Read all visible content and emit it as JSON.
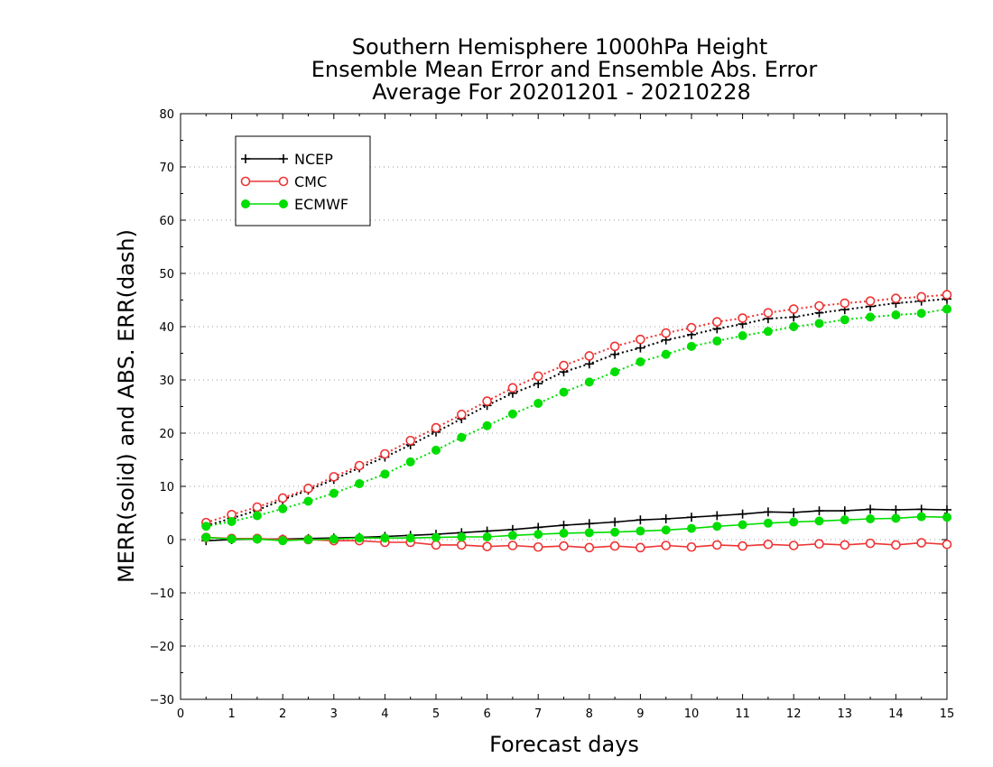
{
  "chart_data": {
    "type": "line",
    "title": [
      "Southern Hemisphere 1000hPa Height",
      "Ensemble Mean Error and Ensemble Abs. Error",
      "Average For 20201201 - 20210228"
    ],
    "xlabel": "Forecast days",
    "ylabel": "MERR(solid) and ABS. ERR(dash)",
    "xlim": [
      0,
      15
    ],
    "ylim": [
      -30,
      80
    ],
    "xticks": [
      0,
      1,
      2,
      3,
      4,
      5,
      6,
      7,
      8,
      9,
      10,
      11,
      12,
      13,
      14,
      15
    ],
    "yticks": [
      -30,
      -20,
      -10,
      0,
      10,
      20,
      30,
      40,
      50,
      60,
      70,
      80
    ],
    "ytick_labels": [
      "−30",
      "−20",
      "−10",
      "0",
      "10",
      "20",
      "30",
      "40",
      "50",
      "60",
      "70",
      "80"
    ],
    "grid": "horizontal dotted",
    "legend_position": "top-left",
    "x": [
      0.5,
      1,
      1.5,
      2,
      2.5,
      3,
      3.5,
      4,
      4.5,
      5,
      5.5,
      6,
      6.5,
      7,
      7.5,
      8,
      8.5,
      9,
      9.5,
      10,
      10.5,
      11,
      11.5,
      12,
      12.5,
      13,
      13.5,
      14,
      14.5,
      15
    ],
    "series": [
      {
        "name": "NCEP",
        "color": "#000000",
        "marker": "plus",
        "merr": [
          -0.2,
          0.0,
          0.1,
          0.1,
          0.2,
          0.3,
          0.4,
          0.6,
          0.8,
          1.0,
          1.3,
          1.6,
          1.9,
          2.3,
          2.7,
          3.0,
          3.3,
          3.7,
          3.9,
          4.2,
          4.5,
          4.8,
          5.2,
          5.1,
          5.4,
          5.4,
          5.7,
          5.6,
          5.7,
          5.6
        ],
        "abs_err": [
          2.6,
          4.0,
          5.5,
          7.5,
          9.3,
          11.3,
          13.5,
          15.5,
          17.8,
          20.2,
          22.7,
          25.2,
          27.5,
          29.3,
          31.5,
          33.0,
          34.8,
          36.0,
          37.5,
          38.5,
          39.6,
          40.5,
          41.5,
          41.8,
          42.6,
          43.2,
          43.8,
          44.4,
          44.8,
          45.2
        ]
      },
      {
        "name": "CMC",
        "color": "#ee3333",
        "marker": "open-circle",
        "merr": [
          0.4,
          0.2,
          0.2,
          0.0,
          0.0,
          -0.2,
          -0.2,
          -0.5,
          -0.5,
          -1.0,
          -1.0,
          -1.3,
          -1.1,
          -1.4,
          -1.2,
          -1.5,
          -1.2,
          -1.5,
          -1.1,
          -1.4,
          -1.0,
          -1.2,
          -0.9,
          -1.1,
          -0.8,
          -1.0,
          -0.7,
          -1.0,
          -0.6,
          -0.9
        ],
        "abs_err": [
          3.2,
          4.7,
          6.1,
          7.8,
          9.6,
          11.8,
          13.9,
          16.1,
          18.6,
          21.0,
          23.5,
          26.0,
          28.5,
          30.7,
          32.7,
          34.5,
          36.3,
          37.6,
          38.8,
          39.8,
          40.9,
          41.6,
          42.6,
          43.3,
          43.9,
          44.4,
          44.8,
          45.3,
          45.6,
          46.0
        ]
      },
      {
        "name": "ECMWF",
        "color": "#00dd00",
        "marker": "filled-circle",
        "merr": [
          0.4,
          0.1,
          0.1,
          -0.2,
          0.0,
          0.1,
          0.3,
          0.3,
          0.3,
          0.4,
          0.5,
          0.5,
          0.8,
          1.0,
          1.2,
          1.3,
          1.4,
          1.6,
          1.8,
          2.1,
          2.5,
          2.8,
          3.1,
          3.3,
          3.5,
          3.7,
          3.9,
          4.0,
          4.3,
          4.2
        ],
        "abs_err": [
          2.5,
          3.4,
          4.5,
          5.8,
          7.2,
          8.7,
          10.5,
          12.3,
          14.6,
          16.8,
          19.2,
          21.4,
          23.6,
          25.6,
          27.7,
          29.6,
          31.5,
          33.4,
          34.8,
          36.3,
          37.3,
          38.3,
          39.1,
          40.0,
          40.6,
          41.3,
          41.8,
          42.2,
          42.5,
          43.3
        ]
      }
    ]
  }
}
